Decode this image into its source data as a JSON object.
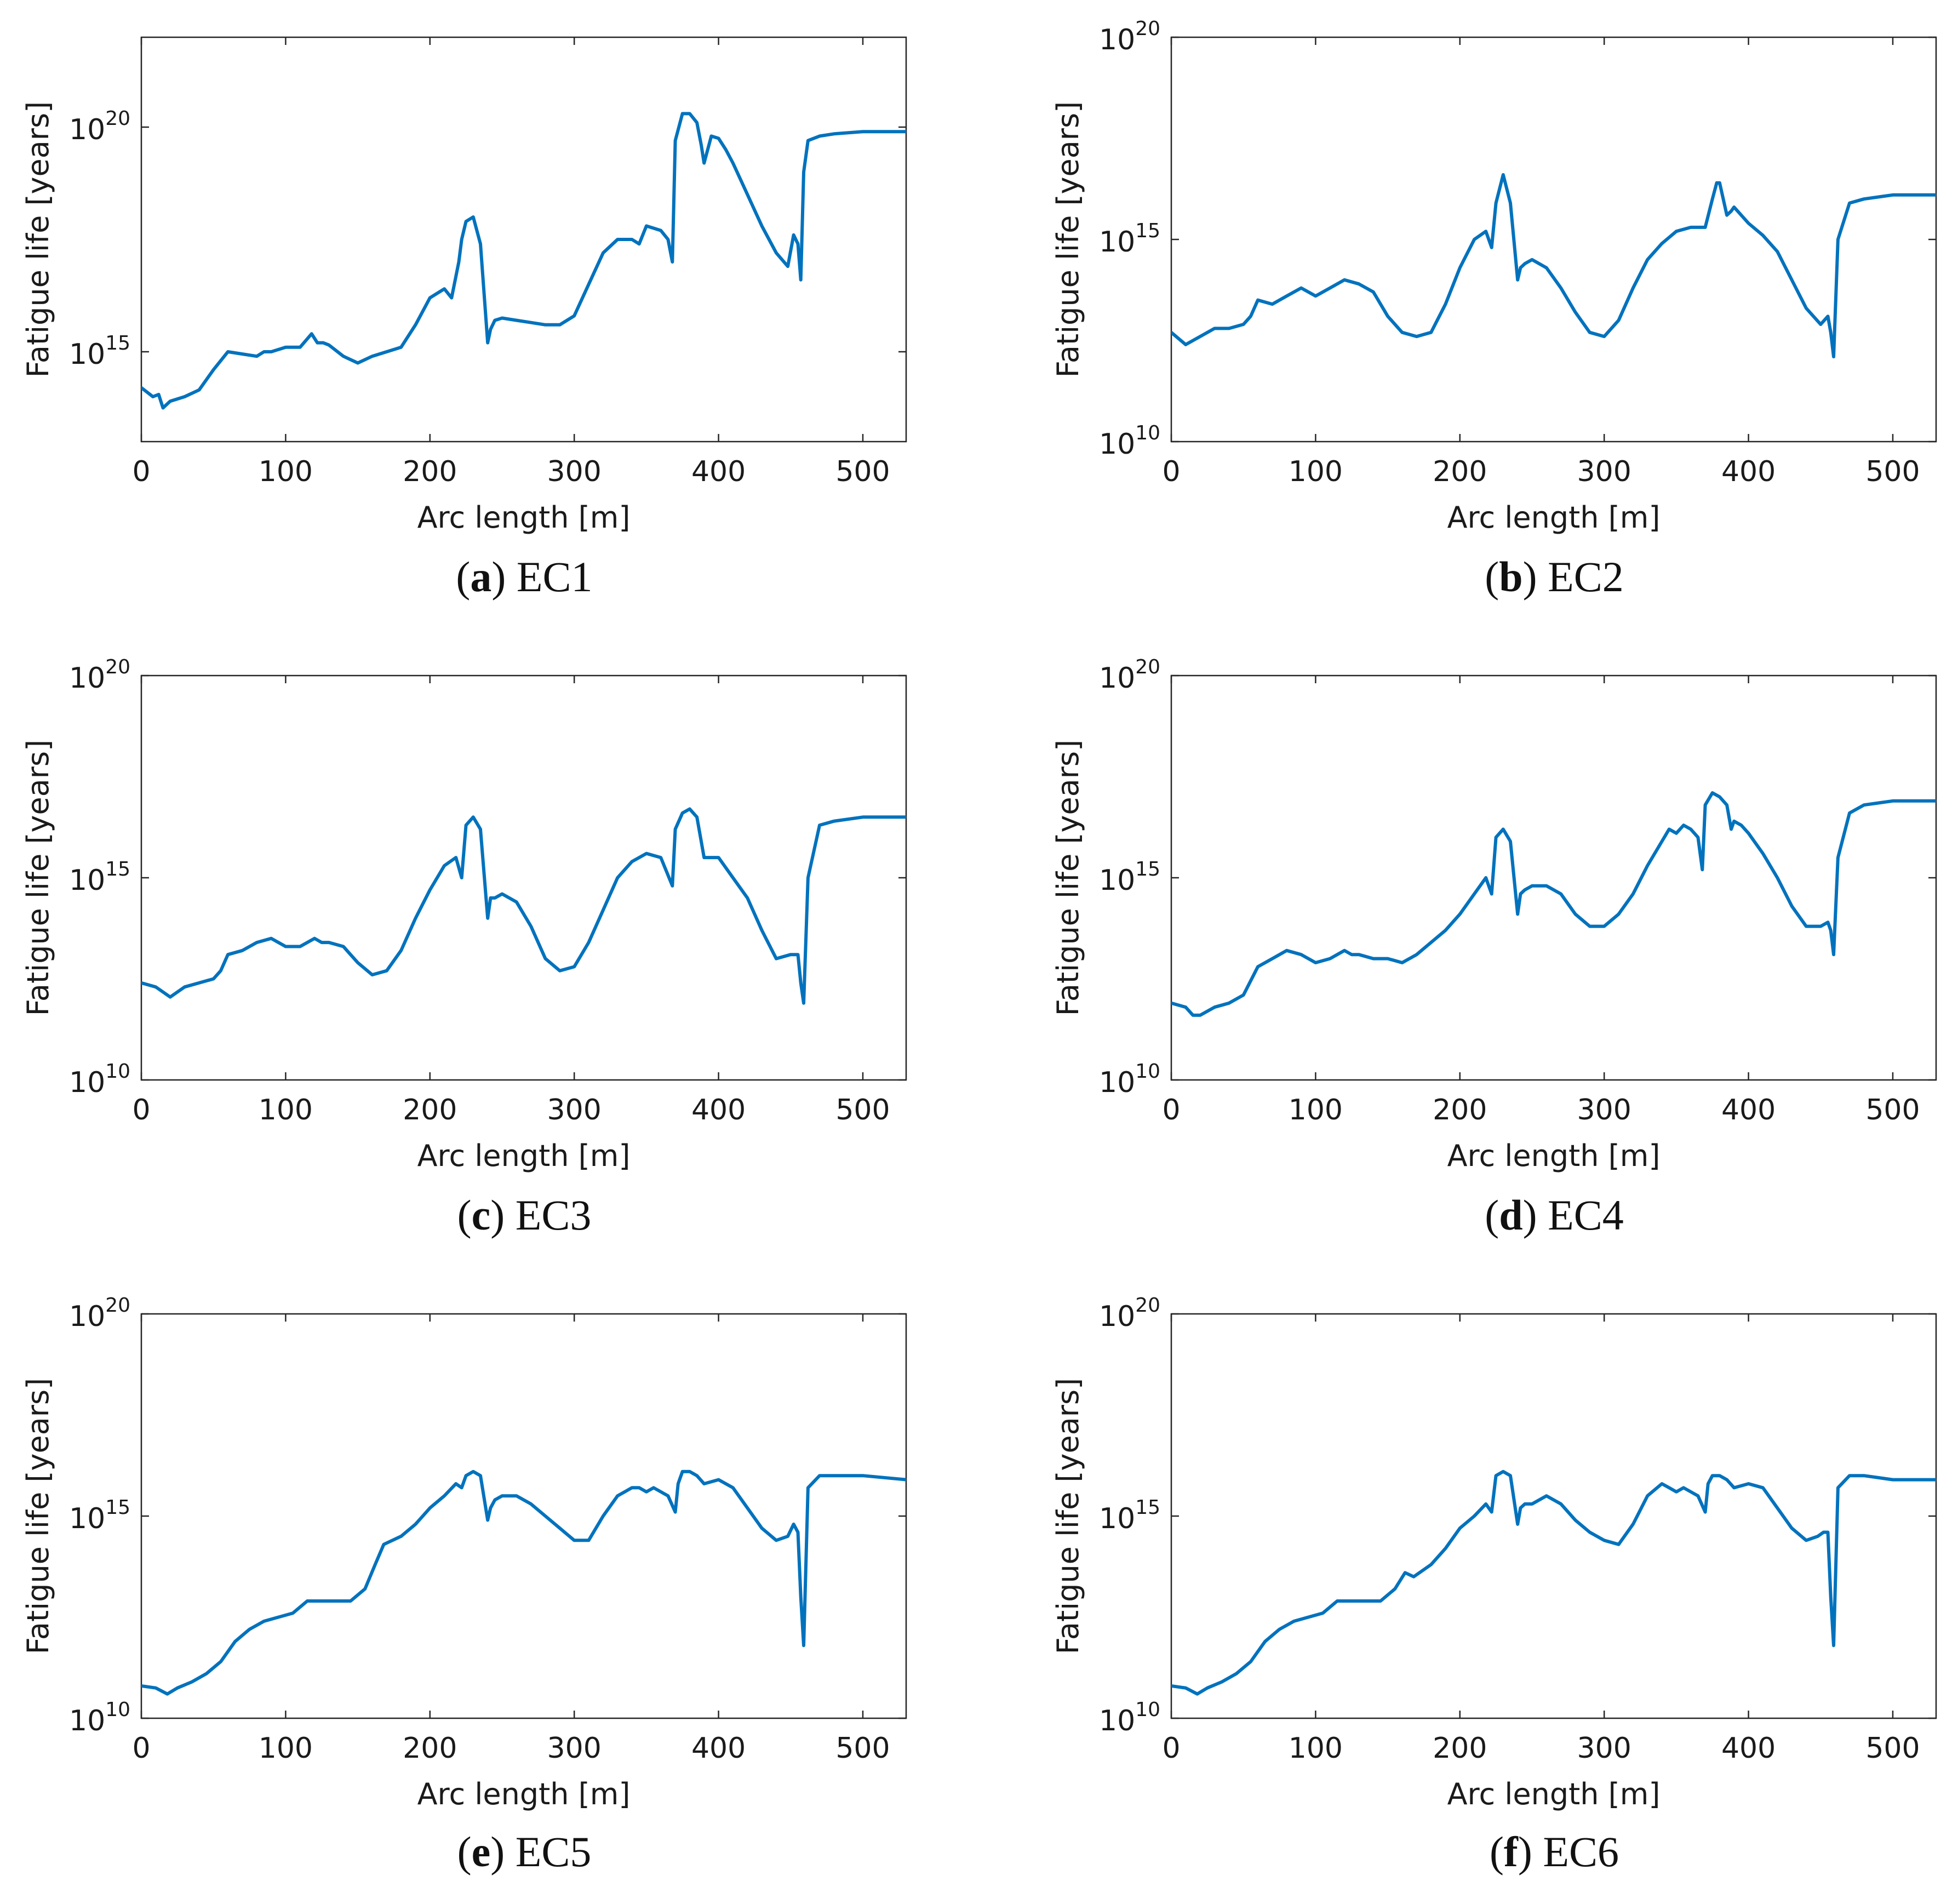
{
  "figure": {
    "captions": [
      {
        "letter": "a",
        "text": "EC1"
      },
      {
        "letter": "b",
        "text": "EC2"
      },
      {
        "letter": "c",
        "text": "EC3"
      },
      {
        "letter": "d",
        "text": "EC4"
      },
      {
        "letter": "e",
        "text": "EC5"
      },
      {
        "letter": "f",
        "text": "EC6"
      }
    ]
  },
  "colors": {
    "line": "#0072BD",
    "axis": "#262626",
    "text": "#1a1a1a"
  },
  "chart_data": [
    {
      "type": "line",
      "title": "EC1",
      "label": "a",
      "xlabel": "Arc length [m]",
      "ylabel": "Fatigue life [years]",
      "yscale": "log",
      "xlim": [
        0,
        530
      ],
      "ylim_exp": [
        13,
        22
      ],
      "xticks": [
        0,
        100,
        200,
        300,
        400,
        500
      ],
      "yticks_exp": [
        15,
        20
      ],
      "ytick_base": "10",
      "ytick_labels": [
        "15",
        "20"
      ],
      "x": [
        0,
        8,
        12,
        15,
        20,
        30,
        40,
        50,
        60,
        70,
        80,
        85,
        90,
        100,
        110,
        118,
        122,
        126,
        130,
        140,
        150,
        160,
        170,
        180,
        190,
        200,
        210,
        215,
        220,
        222,
        225,
        230,
        235,
        240,
        242,
        245,
        250,
        260,
        270,
        280,
        290,
        300,
        310,
        320,
        330,
        340,
        345,
        350,
        355,
        360,
        365,
        368,
        370,
        375,
        380,
        385,
        388,
        390,
        395,
        400,
        405,
        410,
        420,
        430,
        440,
        448,
        452,
        455,
        457,
        459,
        462,
        470,
        480,
        500,
        530
      ],
      "y": [
        14.2,
        14.0,
        14.05,
        13.75,
        13.9,
        14.0,
        14.15,
        14.6,
        15.0,
        14.95,
        14.9,
        15.0,
        15.0,
        15.1,
        15.1,
        15.4,
        15.2,
        15.2,
        15.15,
        14.9,
        14.75,
        14.9,
        15.0,
        15.1,
        15.6,
        16.2,
        16.4,
        16.2,
        17.0,
        17.5,
        17.9,
        18.0,
        17.4,
        15.2,
        15.5,
        15.7,
        15.75,
        15.7,
        15.65,
        15.6,
        15.6,
        15.8,
        16.5,
        17.2,
        17.5,
        17.5,
        17.4,
        17.8,
        17.75,
        17.7,
        17.5,
        17.0,
        19.7,
        20.3,
        20.3,
        20.1,
        19.6,
        19.2,
        19.8,
        19.75,
        19.5,
        19.2,
        18.5,
        17.8,
        17.2,
        16.9,
        17.6,
        17.4,
        16.6,
        19.0,
        19.7,
        19.8,
        19.85,
        19.9,
        19.9
      ]
    },
    {
      "type": "line",
      "title": "EC2",
      "label": "b",
      "xlabel": "Arc length [m]",
      "ylabel": "Fatigue life [years]",
      "yscale": "log",
      "xlim": [
        0,
        530
      ],
      "ylim_exp": [
        10,
        20
      ],
      "xticks": [
        0,
        100,
        200,
        300,
        400,
        500
      ],
      "yticks_exp": [
        10,
        15,
        20
      ],
      "ytick_base": "10",
      "ytick_labels": [
        "10",
        "15",
        "20"
      ],
      "x": [
        0,
        10,
        20,
        30,
        40,
        50,
        55,
        60,
        70,
        80,
        90,
        100,
        110,
        120,
        130,
        140,
        150,
        160,
        170,
        180,
        190,
        200,
        210,
        218,
        222,
        225,
        230,
        235,
        240,
        242,
        245,
        250,
        260,
        270,
        280,
        290,
        300,
        310,
        320,
        330,
        340,
        350,
        360,
        370,
        375,
        378,
        380,
        385,
        388,
        390,
        395,
        400,
        410,
        420,
        430,
        440,
        450,
        455,
        457,
        459,
        462,
        470,
        480,
        500,
        530
      ],
      "y": [
        12.7,
        12.4,
        12.6,
        12.8,
        12.8,
        12.9,
        13.1,
        13.5,
        13.4,
        13.6,
        13.8,
        13.6,
        13.8,
        14.0,
        13.9,
        13.7,
        13.1,
        12.7,
        12.6,
        12.7,
        13.4,
        14.3,
        15.0,
        15.2,
        14.8,
        15.9,
        16.6,
        15.9,
        14.0,
        14.3,
        14.4,
        14.5,
        14.3,
        13.8,
        13.2,
        12.7,
        12.6,
        13.0,
        13.8,
        14.5,
        14.9,
        15.2,
        15.3,
        15.3,
        16.0,
        16.4,
        16.4,
        15.6,
        15.7,
        15.8,
        15.6,
        15.4,
        15.1,
        14.7,
        14.0,
        13.3,
        12.9,
        13.1,
        12.7,
        12.1,
        15.0,
        15.9,
        16.0,
        16.1,
        16.1
      ]
    },
    {
      "type": "line",
      "title": "EC3",
      "label": "c",
      "xlabel": "Arc length [m]",
      "ylabel": "Fatigue life [years]",
      "yscale": "log",
      "xlim": [
        0,
        530
      ],
      "ylim_exp": [
        10,
        20
      ],
      "xticks": [
        0,
        100,
        200,
        300,
        400,
        500
      ],
      "yticks_exp": [
        10,
        15,
        20
      ],
      "ytick_base": "10",
      "ytick_labels": [
        "10",
        "15",
        "20"
      ],
      "x": [
        0,
        10,
        20,
        30,
        40,
        50,
        55,
        60,
        70,
        80,
        90,
        100,
        110,
        120,
        125,
        130,
        140,
        150,
        160,
        170,
        180,
        190,
        200,
        210,
        218,
        222,
        225,
        230,
        235,
        240,
        242,
        245,
        250,
        260,
        270,
        280,
        290,
        300,
        310,
        320,
        330,
        340,
        350,
        360,
        368,
        370,
        375,
        380,
        385,
        390,
        400,
        410,
        420,
        430,
        440,
        450,
        455,
        457,
        459,
        462,
        470,
        480,
        500,
        530
      ],
      "y": [
        12.4,
        12.3,
        12.05,
        12.3,
        12.4,
        12.5,
        12.7,
        13.1,
        13.2,
        13.4,
        13.5,
        13.3,
        13.3,
        13.5,
        13.4,
        13.4,
        13.3,
        12.9,
        12.6,
        12.7,
        13.2,
        14.0,
        14.7,
        15.3,
        15.5,
        15.0,
        16.3,
        16.5,
        16.2,
        14.0,
        14.5,
        14.5,
        14.6,
        14.4,
        13.8,
        13.0,
        12.7,
        12.8,
        13.4,
        14.2,
        15.0,
        15.4,
        15.6,
        15.5,
        14.8,
        16.2,
        16.6,
        16.7,
        16.5,
        15.5,
        15.5,
        15.0,
        14.5,
        13.7,
        13.0,
        13.1,
        13.1,
        12.4,
        11.9,
        15.0,
        16.3,
        16.4,
        16.5,
        16.5
      ]
    },
    {
      "type": "line",
      "title": "EC4",
      "label": "d",
      "xlabel": "Arc length [m]",
      "ylabel": "Fatigue life [years]",
      "yscale": "log",
      "xlim": [
        0,
        530
      ],
      "ylim_exp": [
        10,
        20
      ],
      "xticks": [
        0,
        100,
        200,
        300,
        400,
        500
      ],
      "yticks_exp": [
        10,
        15,
        20
      ],
      "ytick_base": "10",
      "ytick_labels": [
        "10",
        "15",
        "20"
      ],
      "x": [
        0,
        10,
        15,
        20,
        30,
        40,
        50,
        60,
        70,
        80,
        90,
        100,
        110,
        120,
        125,
        130,
        140,
        150,
        160,
        170,
        180,
        190,
        200,
        210,
        218,
        222,
        225,
        230,
        235,
        240,
        242,
        245,
        250,
        260,
        270,
        280,
        290,
        300,
        310,
        320,
        330,
        340,
        345,
        350,
        355,
        360,
        365,
        368,
        370,
        375,
        380,
        385,
        388,
        390,
        395,
        400,
        410,
        420,
        430,
        440,
        450,
        455,
        457,
        459,
        462,
        470,
        480,
        500,
        530
      ],
      "y": [
        11.9,
        11.8,
        11.6,
        11.6,
        11.8,
        11.9,
        12.1,
        12.8,
        13.0,
        13.2,
        13.1,
        12.9,
        13.0,
        13.2,
        13.1,
        13.1,
        13.0,
        13.0,
        12.9,
        13.1,
        13.4,
        13.7,
        14.1,
        14.6,
        15.0,
        14.6,
        16.0,
        16.2,
        15.9,
        14.1,
        14.6,
        14.7,
        14.8,
        14.8,
        14.6,
        14.1,
        13.8,
        13.8,
        14.1,
        14.6,
        15.3,
        15.9,
        16.2,
        16.1,
        16.3,
        16.2,
        16.0,
        15.2,
        16.8,
        17.1,
        17.0,
        16.8,
        16.2,
        16.4,
        16.3,
        16.1,
        15.6,
        15.0,
        14.3,
        13.8,
        13.8,
        13.9,
        13.7,
        13.1,
        15.5,
        16.6,
        16.8,
        16.9,
        16.9
      ]
    },
    {
      "type": "line",
      "title": "EC5",
      "label": "e",
      "xlabel": "Arc length [m]",
      "ylabel": "Fatigue life [years]",
      "yscale": "log",
      "xlim": [
        0,
        530
      ],
      "ylim_exp": [
        10,
        20
      ],
      "xticks": [
        0,
        100,
        200,
        300,
        400,
        500
      ],
      "yticks_exp": [
        10,
        15,
        20
      ],
      "ytick_base": "10",
      "ytick_labels": [
        "10",
        "15",
        "20"
      ],
      "x": [
        0,
        10,
        18,
        25,
        35,
        45,
        55,
        65,
        75,
        85,
        95,
        105,
        115,
        125,
        135,
        145,
        155,
        162,
        168,
        180,
        190,
        200,
        210,
        218,
        222,
        225,
        230,
        235,
        240,
        242,
        245,
        250,
        260,
        270,
        280,
        290,
        300,
        310,
        320,
        330,
        340,
        345,
        350,
        355,
        360,
        365,
        370,
        372,
        375,
        380,
        385,
        390,
        400,
        410,
        420,
        430,
        440,
        448,
        452,
        455,
        457,
        459,
        462,
        470,
        480,
        500,
        530
      ],
      "y": [
        10.8,
        10.75,
        10.6,
        10.75,
        10.9,
        11.1,
        11.4,
        11.9,
        12.2,
        12.4,
        12.5,
        12.6,
        12.9,
        12.9,
        12.9,
        12.9,
        13.2,
        13.8,
        14.3,
        14.5,
        14.8,
        15.2,
        15.5,
        15.8,
        15.7,
        16.0,
        16.1,
        16.0,
        14.9,
        15.2,
        15.4,
        15.5,
        15.5,
        15.3,
        15.0,
        14.7,
        14.4,
        14.4,
        15.0,
        15.5,
        15.7,
        15.7,
        15.6,
        15.7,
        15.6,
        15.5,
        15.1,
        15.8,
        16.1,
        16.1,
        16.0,
        15.8,
        15.9,
        15.7,
        15.2,
        14.7,
        14.4,
        14.5,
        14.8,
        14.6,
        13.0,
        11.8,
        15.7,
        16.0,
        16.0,
        16.0,
        15.9
      ]
    },
    {
      "type": "line",
      "title": "EC6",
      "label": "f",
      "xlabel": "Arc length [m]",
      "ylabel": "Fatigue life [years]",
      "yscale": "log",
      "xlim": [
        0,
        530
      ],
      "ylim_exp": [
        10,
        20
      ],
      "xticks": [
        0,
        100,
        200,
        300,
        400,
        500
      ],
      "yticks_exp": [
        10,
        15,
        20
      ],
      "ytick_base": "10",
      "ytick_labels": [
        "10",
        "15",
        "20"
      ],
      "x": [
        0,
        10,
        18,
        25,
        35,
        45,
        55,
        65,
        75,
        85,
        95,
        105,
        115,
        125,
        135,
        145,
        155,
        162,
        168,
        180,
        190,
        200,
        210,
        218,
        222,
        225,
        230,
        235,
        240,
        242,
        245,
        250,
        260,
        270,
        280,
        290,
        300,
        310,
        320,
        330,
        340,
        345,
        350,
        355,
        360,
        365,
        370,
        372,
        375,
        380,
        385,
        390,
        400,
        410,
        420,
        430,
        440,
        448,
        452,
        455,
        457,
        459,
        462,
        470,
        480,
        500,
        530
      ],
      "y": [
        10.8,
        10.75,
        10.6,
        10.75,
        10.9,
        11.1,
        11.4,
        11.9,
        12.2,
        12.4,
        12.5,
        12.6,
        12.9,
        12.9,
        12.9,
        12.9,
        13.2,
        13.6,
        13.5,
        13.8,
        14.2,
        14.7,
        15.0,
        15.3,
        15.1,
        16.0,
        16.1,
        16.0,
        14.8,
        15.2,
        15.3,
        15.3,
        15.5,
        15.3,
        14.9,
        14.6,
        14.4,
        14.3,
        14.8,
        15.5,
        15.8,
        15.7,
        15.6,
        15.7,
        15.6,
        15.5,
        15.1,
        15.8,
        16.0,
        16.0,
        15.9,
        15.7,
        15.8,
        15.7,
        15.2,
        14.7,
        14.4,
        14.5,
        14.6,
        14.6,
        13.0,
        11.8,
        15.7,
        16.0,
        16.0,
        15.9,
        15.9
      ]
    }
  ]
}
